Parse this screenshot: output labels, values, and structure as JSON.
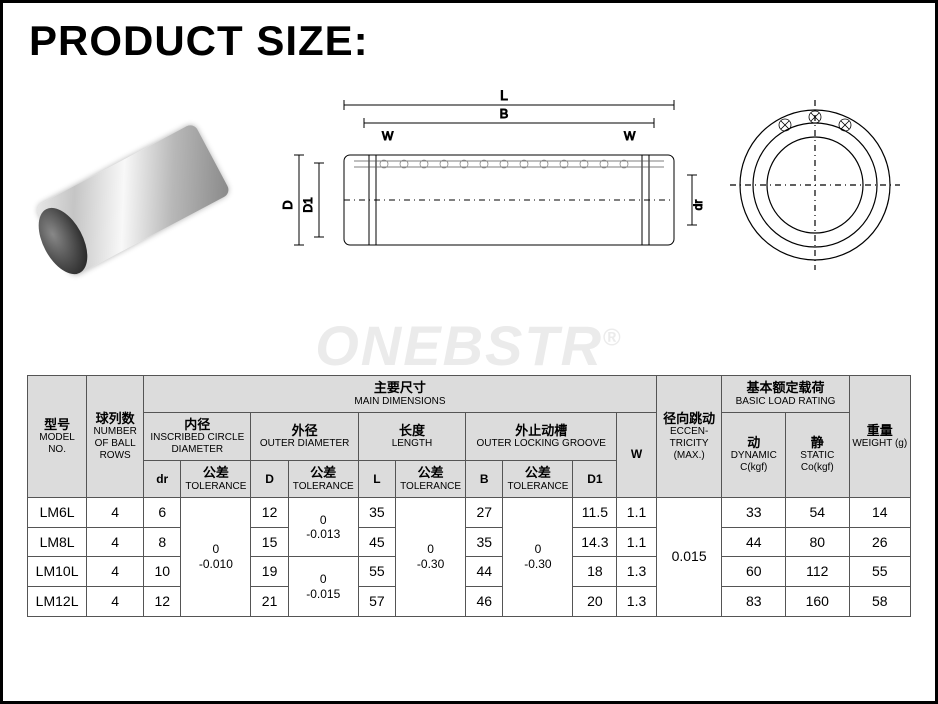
{
  "title": "PRODUCT SIZE:",
  "watermark": "ONEBSTR",
  "diagram_labels": {
    "L": "L",
    "B": "B",
    "W": "W",
    "D": "D",
    "D1": "D1",
    "dr": "dr"
  },
  "colors": {
    "frame_border": "#000000",
    "header_bg": "#dcdcdc",
    "cell_border": "#555555",
    "watermark": "#ebebeb"
  },
  "headers": {
    "model": {
      "cn": "型号",
      "en": "MODEL NO."
    },
    "rows": {
      "cn": "球列数",
      "en": "NUMBER OF BALL ROWS"
    },
    "main": {
      "cn": "主要尺寸",
      "en": "MAIN DIMENSIONS"
    },
    "inscribed": {
      "cn": "内径",
      "en": "INSCRIBED CIRCLE DIAMETER"
    },
    "outer": {
      "cn": "外径",
      "en": "OUTER DIAMETER"
    },
    "length": {
      "cn": "长度",
      "en": "LENGTH"
    },
    "groove": {
      "cn": "外止动槽",
      "en": "OUTER LOCKING GROOVE"
    },
    "W": "W",
    "ecc": {
      "cn": "径向跳动",
      "en": "ECCEN-TRICITY (MAX.)"
    },
    "load": {
      "cn": "基本额定载荷",
      "en": "BASIC LOAD RATING"
    },
    "dyn": {
      "cn": "动",
      "en": "DYNAMIC C(kgf)"
    },
    "stat": {
      "cn": "静",
      "en": "STATIC Co(kgf)"
    },
    "weight": {
      "cn": "重量",
      "en": "WEIGHT (g)"
    },
    "dr": "dr",
    "D": "D",
    "L": "L",
    "B": "B",
    "D1": "D1",
    "tol": {
      "cn": "公差",
      "en": "TOLERANCE"
    }
  },
  "tolerances": {
    "dr": "0\n-0.010",
    "D_a": "0\n-0.013",
    "D_b": "0\n-0.015",
    "L": "0\n-0.30",
    "B": "0\n-0.30",
    "ecc": "0.015"
  },
  "data": [
    {
      "model": "LM6L",
      "rows": "4",
      "dr": "6",
      "D": "12",
      "L": "35",
      "B": "27",
      "D1": "11.5",
      "W": "1.1",
      "dyn": "33",
      "stat": "54",
      "wt": "14"
    },
    {
      "model": "LM8L",
      "rows": "4",
      "dr": "8",
      "D": "15",
      "L": "45",
      "B": "35",
      "D1": "14.3",
      "W": "1.1",
      "dyn": "44",
      "stat": "80",
      "wt": "26"
    },
    {
      "model": "LM10L",
      "rows": "4",
      "dr": "10",
      "D": "19",
      "L": "55",
      "B": "44",
      "D1": "18",
      "W": "1.3",
      "dyn": "60",
      "stat": "112",
      "wt": "55"
    },
    {
      "model": "LM12L",
      "rows": "4",
      "dr": "12",
      "D": "21",
      "L": "57",
      "B": "46",
      "D1": "20",
      "W": "1.3",
      "dyn": "83",
      "stat": "160",
      "wt": "58"
    }
  ]
}
